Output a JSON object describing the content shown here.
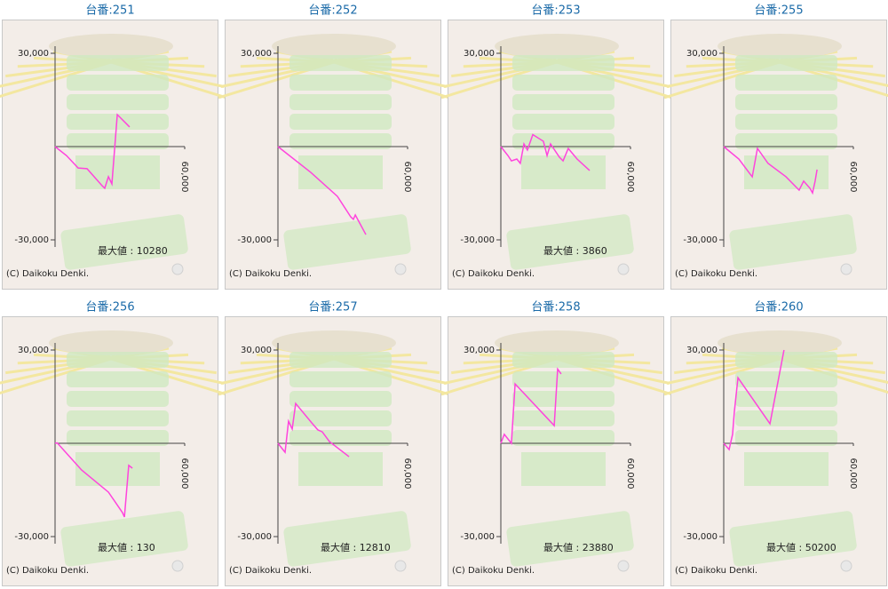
{
  "chart_data": [
    {
      "type": "line",
      "title": "台番:251",
      "color": "#ff44dd",
      "x": [
        0,
        5300,
        10700,
        14800,
        21800,
        23000,
        24700,
        26300,
        28800,
        34500
      ],
      "values": [
        0,
        -2900,
        -6900,
        -7100,
        -12600,
        -13400,
        -9700,
        -12000,
        10280,
        6300
      ],
      "xlim": [
        0,
        60000
      ],
      "xticks": [
        {
          "value": 60000,
          "label": "60,000"
        }
      ],
      "ylim": [
        -30000,
        30000
      ],
      "yticks": [
        {
          "value": 30000,
          "label": "30,000"
        },
        {
          "value": -30000,
          "label": "-30,000"
        }
      ],
      "annotation": "最大値 : 10280",
      "credit": "(C) Daikoku Denki."
    },
    {
      "type": "line",
      "title": "台番:252",
      "color": "#ff44dd",
      "x": [
        0,
        15200,
        27500,
        33700,
        34900,
        35800,
        40700
      ],
      "values": [
        0,
        -8300,
        -16000,
        -22600,
        -23400,
        -22000,
        -28300
      ],
      "xlim": [
        0,
        60000
      ],
      "xticks": [
        {
          "value": 60000,
          "label": "60,000"
        }
      ],
      "ylim": [
        -30000,
        30000
      ],
      "yticks": [
        {
          "value": 30000,
          "label": "30,000"
        },
        {
          "value": -30000,
          "label": "-30,000"
        }
      ],
      "credit": "(C) Daikoku Denki."
    },
    {
      "type": "line",
      "title": "台番:253",
      "color": "#ff44dd",
      "x": [
        0,
        3300,
        4900,
        7400,
        9000,
        10700,
        12300,
        14800,
        19700,
        21400,
        23000,
        27100,
        28800,
        31200,
        35300,
        41100
      ],
      "values": [
        0,
        -2900,
        -4600,
        -4000,
        -5400,
        860,
        -1100,
        3860,
        1700,
        -2900,
        860,
        -3400,
        -4600,
        -600,
        -4000,
        -7700
      ],
      "xlim": [
        0,
        60000
      ],
      "xticks": [
        {
          "value": 60000,
          "label": "60,000"
        }
      ],
      "ylim": [
        -30000,
        30000
      ],
      "yticks": [
        {
          "value": 30000,
          "label": "30,000"
        },
        {
          "value": -30000,
          "label": "-30,000"
        }
      ],
      "annotation": "最大値 : 3860",
      "credit": "(C) Daikoku Denki."
    },
    {
      "type": "line",
      "title": "台番:255",
      "color": "#ff44dd",
      "x": [
        0,
        7000,
        12300,
        13200,
        15600,
        20500,
        28800,
        34900,
        37000,
        39900,
        41100,
        42300,
        43200
      ],
      "values": [
        0,
        -4000,
        -8900,
        -9700,
        -570,
        -5400,
        -9700,
        -14000,
        -11100,
        -13400,
        -14900,
        -11100,
        -7400
      ],
      "xlim": [
        0,
        60000
      ],
      "xticks": [
        {
          "value": 60000,
          "label": "60,000"
        }
      ],
      "ylim": [
        -30000,
        30000
      ],
      "yticks": [
        {
          "value": 30000,
          "label": "30,000"
        },
        {
          "value": -30000,
          "label": "-30,000"
        }
      ],
      "credit": "(C) Daikoku Denki."
    },
    {
      "type": "line",
      "title": "台番:256",
      "color": "#ff44dd",
      "x": [
        0,
        1000,
        12300,
        24700,
        31200,
        32100,
        32900,
        34100,
        35800
      ],
      "values": [
        0,
        130,
        -8600,
        -15700,
        -22300,
        -23700,
        -17100,
        -7100,
        -8000
      ],
      "xlim": [
        0,
        60000
      ],
      "xticks": [
        {
          "value": 60000,
          "label": "60,000"
        }
      ],
      "ylim": [
        -30000,
        30000
      ],
      "yticks": [
        {
          "value": 30000,
          "label": "30,000"
        },
        {
          "value": -30000,
          "label": "-30,000"
        }
      ],
      "annotation": "最大値 : 130",
      "credit": "(C) Daikoku Denki."
    },
    {
      "type": "line",
      "title": "台番:257",
      "color": "#ff44dd",
      "x": [
        0,
        3300,
        4900,
        6600,
        8200,
        15600,
        18500,
        20500,
        23800,
        32900
      ],
      "values": [
        0,
        -2900,
        7100,
        4600,
        12810,
        6600,
        4300,
        3700,
        570,
        -4300
      ],
      "xlim": [
        0,
        60000
      ],
      "xticks": [
        {
          "value": 60000,
          "label": "60,000"
        }
      ],
      "ylim": [
        -30000,
        30000
      ],
      "yticks": [
        {
          "value": 30000,
          "label": "30,000"
        },
        {
          "value": -30000,
          "label": "-30,000"
        }
      ],
      "annotation": "最大値 : 12810",
      "credit": "(C) Daikoku Denki."
    },
    {
      "type": "line",
      "title": "台番:258",
      "color": "#ff44dd",
      "x": [
        0,
        1600,
        4900,
        6600,
        24700,
        26300,
        27900
      ],
      "values": [
        0,
        2900,
        0,
        19100,
        5700,
        23880,
        22300
      ],
      "xlim": [
        0,
        60000
      ],
      "xticks": [
        {
          "value": 60000,
          "label": "60,000"
        }
      ],
      "ylim": [
        -30000,
        30000
      ],
      "yticks": [
        {
          "value": 30000,
          "label": "30,000"
        },
        {
          "value": -30000,
          "label": "-30,000"
        }
      ],
      "annotation": "最大値 : 23880",
      "credit": "(C) Daikoku Denki."
    },
    {
      "type": "line",
      "title": "台番:260",
      "color": "#ff44dd",
      "x": [
        0,
        2500,
        4100,
        4900,
        6600,
        21400,
        27900
      ],
      "values": [
        0,
        -2000,
        2900,
        10000,
        21100,
        6300,
        30000
      ],
      "xlim": [
        0,
        60000
      ],
      "xticks": [
        {
          "value": 60000,
          "label": "60,000"
        }
      ],
      "ylim": [
        -30000,
        30000
      ],
      "yticks": [
        {
          "value": 30000,
          "label": "30,000"
        },
        {
          "value": -30000,
          "label": "-30,000"
        }
      ],
      "annotation": "最大値 : 50200",
      "credit": "(C) Daikoku Denki."
    }
  ]
}
